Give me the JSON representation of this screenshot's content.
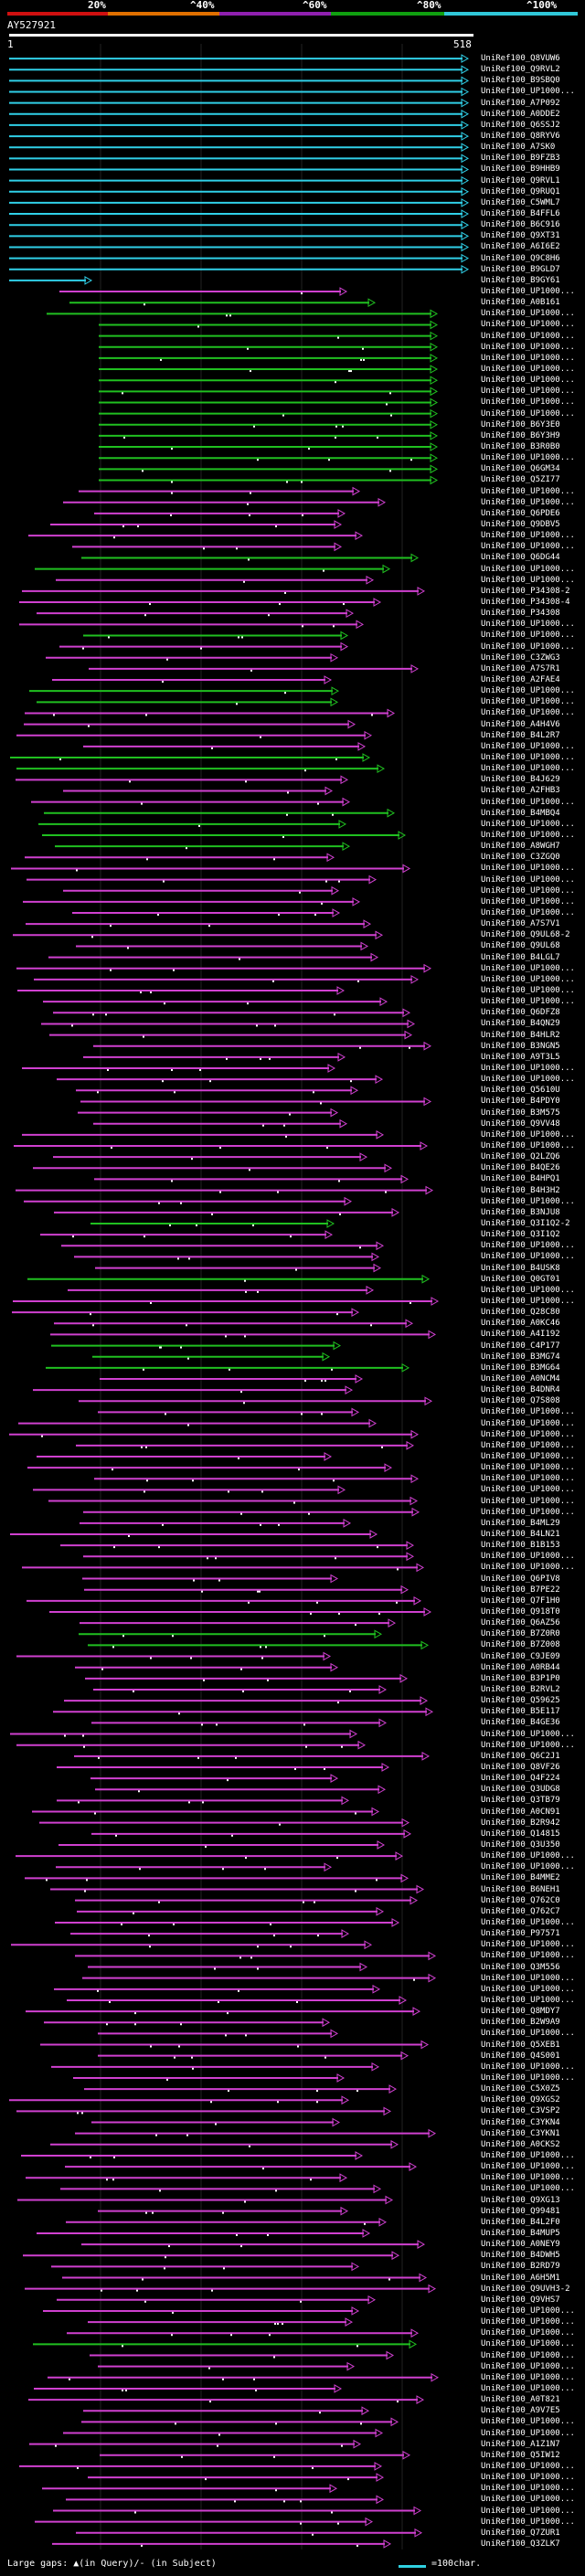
{
  "scale": {
    "ticks": [
      "20%",
      "^40%",
      "^60%",
      "^80%",
      "^100%"
    ],
    "colors": [
      "#d01010",
      "#e07000",
      "#9020b0",
      "#10a010",
      "#30c8d8"
    ]
  },
  "query": {
    "name": "AY527921",
    "start": "1",
    "end": "518"
  },
  "colors": {
    "cyan": "#30d0e8",
    "green": "#20c020",
    "magenta": "#d040d0",
    "white": "#ffffff"
  },
  "hits": [
    "UniRef100_Q8VUW6",
    "UniRef100_Q9RVL2",
    "UniRef100_B9SBQ0",
    "UniRef100_UP1000...",
    "UniRef100_A7P092",
    "UniRef100_A0DDE2",
    "UniRef100_Q6SSJ2",
    "UniRef100_Q8RYV6",
    "UniRef100_A7SK0",
    "UniRef100_B9FZB3",
    "UniRef100_B9HHB9",
    "UniRef100_Q9RVL1",
    "UniRef100_Q9RUQ1",
    "UniRef100_C5WML7",
    "UniRef100_B4FFL6",
    "UniRef100_B6C916",
    "UniRef100_Q9XT31",
    "UniRef100_A6I6E2",
    "UniRef100_Q9C8H6",
    "UniRef100_B9GLD7",
    "UniRef100_B9GY61",
    "UniRef100_UP1000...",
    "UniRef100_A0B161",
    "UniRef100_UP1000...",
    "UniRef100_UP1000...",
    "UniRef100_UP1000...",
    "UniRef100_UP1000...",
    "UniRef100_UP1000...",
    "UniRef100_UP1000...",
    "UniRef100_UP1000...",
    "UniRef100_UP1000...",
    "UniRef100_UP1000...",
    "UniRef100_UP1000...",
    "UniRef100_B6Y3E0",
    "UniRef100_B6Y3H9",
    "UniRef100_B3R0B0",
    "UniRef100_UP1000...",
    "UniRef100_Q6GM34",
    "UniRef100_Q5ZI77",
    "UniRef100_UP1000...",
    "UniRef100_UP1000...",
    "UniRef100_Q6PDE6",
    "UniRef100_Q9DBV5",
    "UniRef100_UP1000...",
    "UniRef100_UP1000...",
    "UniRef100_Q6DG44",
    "UniRef100_UP1000...",
    "UniRef100_UP1000...",
    "UniRef100_P34308-2",
    "UniRef100_P34308-4",
    "UniRef100_P34308",
    "UniRef100_UP1000...",
    "UniRef100_UP1000...",
    "UniRef100_UP1000...",
    "UniRef100_C3ZWG3",
    "UniRef100_A7S7R1",
    "UniRef100_A2FAE4",
    "UniRef100_UP1000...",
    "UniRef100_UP1000...",
    "UniRef100_UP1000...",
    "UniRef100_A4H4V6",
    "UniRef100_B4L2R7",
    "UniRef100_UP1000...",
    "UniRef100_UP1000...",
    "UniRef100_UP1000...",
    "UniRef100_B4J629",
    "UniRef100_A2FHB3",
    "UniRef100_UP1000...",
    "UniRef100_B4MBQ4",
    "UniRef100_UP1000...",
    "UniRef100_UP1000...",
    "UniRef100_A8WGH7",
    "UniRef100_C3ZGQ0",
    "UniRef100_UP1000...",
    "UniRef100_UP1000...",
    "UniRef100_UP1000...",
    "UniRef100_UP1000...",
    "UniRef100_UP1000...",
    "UniRef100_A7S7V1",
    "UniRef100_Q9UL68-2",
    "UniRef100_Q9UL68",
    "UniRef100_B4LGL7",
    "UniRef100_UP1000...",
    "UniRef100_UP1000...",
    "UniRef100_UP1000...",
    "UniRef100_UP1000...",
    "UniRef100_Q6DFZ8",
    "UniRef100_B4QN29",
    "UniRef100_B4HLR2",
    "UniRef100_B3NGN5",
    "UniRef100_A9T3L5",
    "UniRef100_UP1000...",
    "UniRef100_UP1000...",
    "UniRef100_Q5610U",
    "UniRef100_B4PDY0",
    "UniRef100_B3M575",
    "UniRef100_Q9VV48",
    "UniRef100_UP1000...",
    "UniRef100_UP1000...",
    "UniRef100_Q2LZQ6",
    "UniRef100_B4QE26",
    "UniRef100_B4HPQ1",
    "UniRef100_B4H3H2",
    "UniRef100_UP1000...",
    "UniRef100_B3NJU8",
    "UniRef100_Q3I1Q2-2",
    "UniRef100_Q3I1Q2",
    "UniRef100_UP1000...",
    "UniRef100_UP1000...",
    "UniRef100_B4USK8",
    "UniRef100_Q0GT01",
    "UniRef100_UP1000...",
    "UniRef100_UP1000...",
    "UniRef100_Q28C80",
    "UniRef100_A0KC46",
    "UniRef100_A4I192",
    "UniRef100_C4P177",
    "UniRef100_B3MG74",
    "UniRef100_B3MG64",
    "UniRef100_A0NCM4",
    "UniRef100_B4DNR4",
    "UniRef100_Q7S808",
    "UniRef100_UP1000...",
    "UniRef100_UP1000...",
    "UniRef100_UP1000...",
    "UniRef100_UP1000...",
    "UniRef100_UP1000...",
    "UniRef100_UP1000...",
    "UniRef100_UP1000...",
    "UniRef100_UP1000...",
    "UniRef100_UP1000...",
    "UniRef100_UP1000...",
    "UniRef100_B4ML29",
    "UniRef100_B4LN21",
    "UniRef100_B1B153",
    "UniRef100_UP1000...",
    "UniRef100_UP1000...",
    "UniRef100_Q6PIV8",
    "UniRef100_B7PE22",
    "UniRef100_Q7F1H0",
    "UniRef100_Q918T0",
    "UniRef100_Q6AZ56",
    "UniRef100_B7Z0R0",
    "UniRef100_B7Z008",
    "UniRef100_C9JE09",
    "UniRef100_A0RB44",
    "UniRef100_B3P1P0",
    "UniRef100_B2RVL2",
    "UniRef100_Q59625",
    "UniRef100_B5E117",
    "UniRef100_B4GE36",
    "UniRef100_UP1000...",
    "UniRef100_UP1000...",
    "UniRef100_Q6C2J1",
    "UniRef100_Q8VF26",
    "UniRef100_Q4F224",
    "UniRef100_Q3UDG8",
    "UniRef100_Q3TB79",
    "UniRef100_A0CN91",
    "UniRef100_B2R942",
    "UniRef100_Q14815",
    "UniRef100_Q3U350",
    "UniRef100_UP1000...",
    "UniRef100_UP1000...",
    "UniRef100_B4MME2",
    "UniRef100_B6NEH1",
    "UniRef100_Q762C0",
    "UniRef100_Q762C7",
    "UniRef100_UP1000...",
    "UniRef100_P97571",
    "UniRef100_UP1000...",
    "UniRef100_UP1000...",
    "UniRef100_Q3M556",
    "UniRef100_UP1000...",
    "UniRef100_UP1000...",
    "UniRef100_UP1000...",
    "UniRef100_Q8MDY7",
    "UniRef100_B2W9A9",
    "UniRef100_UP1000...",
    "UniRef100_Q5XEB1",
    "UniRef100_Q4S001",
    "UniRef100_UP1000...",
    "UniRef100_UP1000...",
    "UniRef100_C5X0Z5",
    "UniRef100_Q9XGS2",
    "UniRef100_C3VSP2",
    "UniRef100_C3YKN4",
    "UniRef100_C3YKN1",
    "UniRef100_A0CKS2",
    "UniRef100_UP1000...",
    "UniRef100_UP1000...",
    "UniRef100_UP1000...",
    "UniRef100_UP1000...",
    "UniRef100_Q9XG13",
    "UniRef100_Q99481",
    "UniRef100_B4L2F0",
    "UniRef100_B4MUP5",
    "UniRef100_A0NEY9",
    "UniRef100_B4DWH5",
    "UniRef100_B2RD79",
    "UniRef100_A6H5M1",
    "UniRef100_Q9UVH3-2",
    "UniRef100_Q9VHS7",
    "UniRef100_UP1000...",
    "UniRef100_UP1000...",
    "UniRef100_UP1000...",
    "UniRef100_UP1000...",
    "UniRef100_UP1000...",
    "UniRef100_UP1000...",
    "UniRef100_UP1000...",
    "UniRef100_UP1000...",
    "UniRef100_A0T821",
    "UniRef100_A9V7E5",
    "UniRef100_UP1000...",
    "UniRef100_UP1000...",
    "UniRef100_A1Z1N7",
    "UniRef100_Q5IW12",
    "UniRef100_UP1000...",
    "UniRef100_UP1000...",
    "UniRef100_UP1000...",
    "UniRef100_UP1000...",
    "UniRef100_UP1000...",
    "UniRef100_UP1000...",
    "UniRef100_Q7ZUR1",
    "UniRef100_Q3ZLK7"
  ],
  "footer": {
    "large_gaps": "Large gaps: ▲(in Query)/- (in Subject)",
    "legend": "=100char."
  }
}
